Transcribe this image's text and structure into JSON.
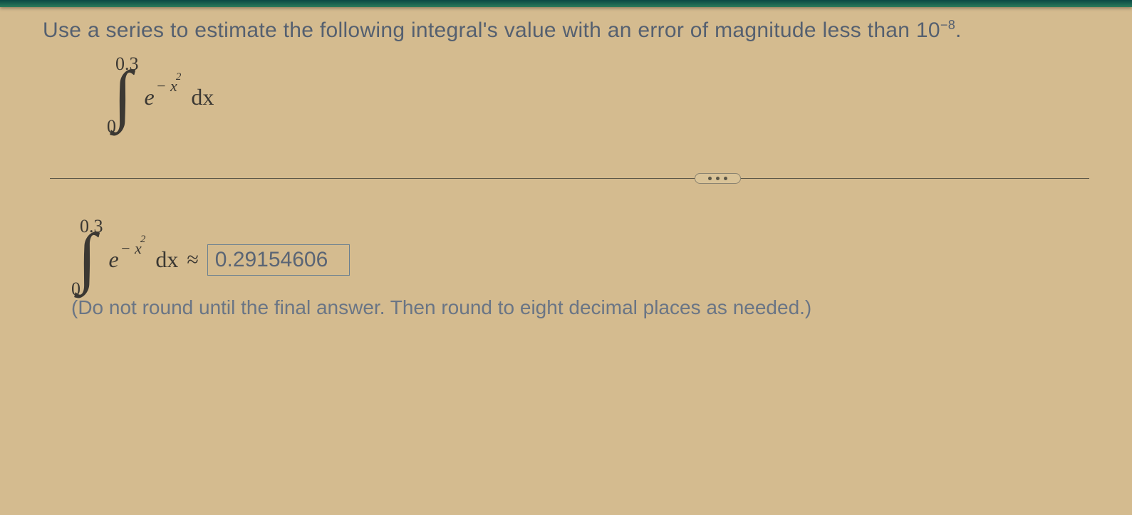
{
  "instruction": {
    "text_part1": "Use a series to estimate the following integral's value with an error of magnitude less than 10",
    "exponent": "−8",
    "text_part2": "."
  },
  "integral": {
    "upper_limit": "0.3",
    "lower_limit": "0",
    "base": "e",
    "exp_neg": "− x",
    "exp_power": "2",
    "dx": "dx"
  },
  "answer": {
    "upper_limit": "0.3",
    "lower_limit": "0",
    "base": "e",
    "exp_neg": "− x",
    "exp_power": "2",
    "dx": "dx",
    "approx_symbol": "≈",
    "value": "0.29154606"
  },
  "hint": "(Do not round until the final answer. Then round to eight decimal places as needed.)"
}
